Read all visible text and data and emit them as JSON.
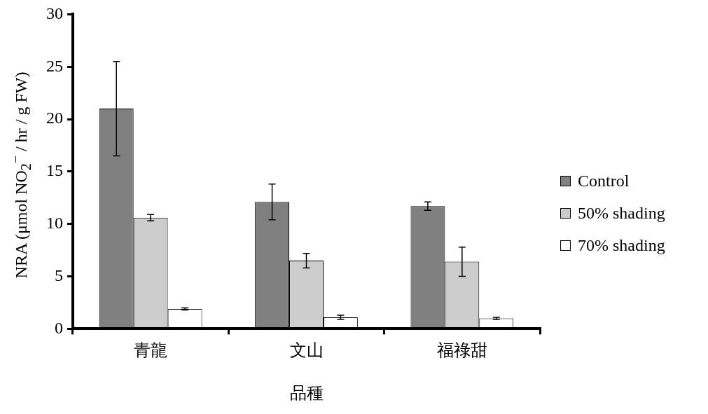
{
  "chart_data": {
    "type": "bar",
    "xlabel": "品種",
    "ylabel": "NRA (μmol NO$_{2}$$^{−}$ / hr / g FW)",
    "categories": [
      "青龍",
      "文山",
      "福祿甜"
    ],
    "series": [
      {
        "name": "Control",
        "color": "#808080",
        "values": [
          21.0,
          12.1,
          11.7
        ],
        "errors": [
          4.5,
          1.7,
          0.4
        ]
      },
      {
        "name": "50% shading",
        "color": "#cccccc",
        "values": [
          10.6,
          6.5,
          6.4
        ],
        "errors": [
          0.3,
          0.7,
          1.4
        ]
      },
      {
        "name": "70% shading",
        "color": "#ffffff",
        "values": [
          1.9,
          1.1,
          1.0
        ],
        "errors": [
          0.1,
          0.2,
          0.1
        ]
      }
    ],
    "ylim": [
      0,
      30
    ],
    "yticks": [
      0,
      5,
      10,
      15,
      20,
      25,
      30
    ],
    "grid": false,
    "legend": "right"
  }
}
